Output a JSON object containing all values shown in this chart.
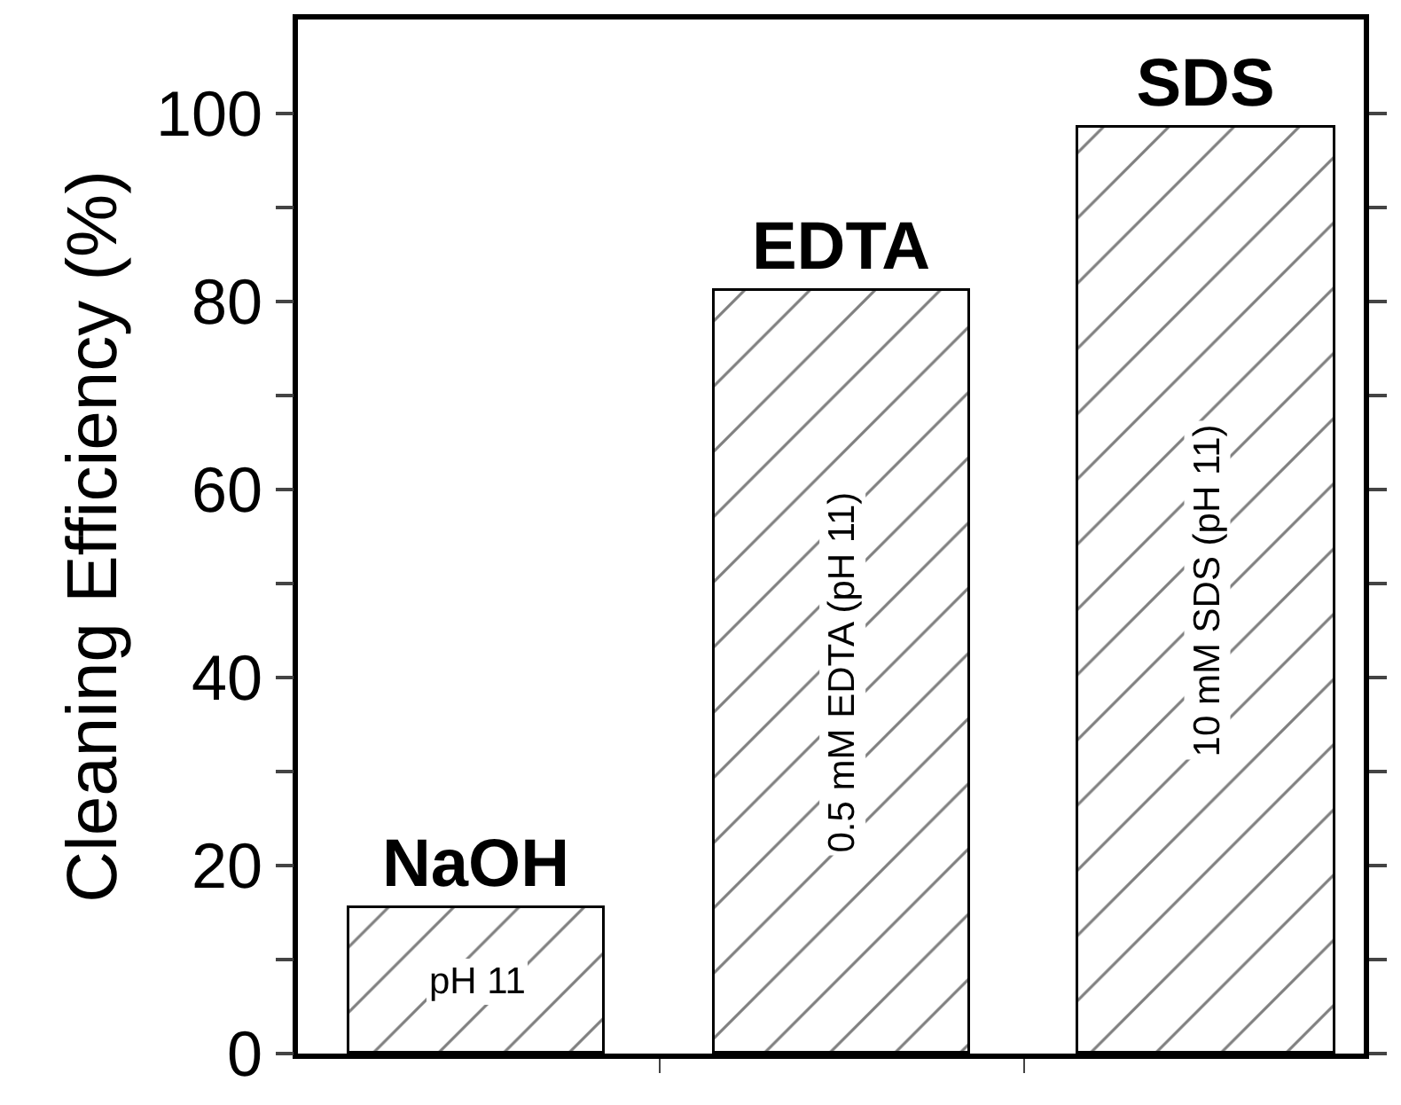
{
  "chart_data": {
    "type": "bar",
    "ylabel": "Cleaning Efficiency (%)",
    "categories": [
      null,
      null,
      null
    ],
    "series": [
      {
        "name": "NaOH",
        "color": "#000000",
        "values": [
          15.4,
          null,
          null
        ]
      },
      {
        "name": "EDTA",
        "color": "#000000",
        "values": [
          null,
          81.1,
          null
        ]
      },
      {
        "name": "SDS",
        "color": "#000000",
        "values": [
          null,
          null,
          98.4
        ]
      }
    ],
    "annotations": [
      "pH 11",
      "0.5 mM EDTA (pH 11)",
      "10 mM SDS (pH 11)"
    ],
    "ylim": [
      0,
      110
    ],
    "yticks": [
      0,
      {
        "value": 10,
        "label": null
      },
      20,
      {
        "value": 30,
        "label": null
      },
      40,
      {
        "value": 50,
        "label": null
      },
      60,
      {
        "value": 70,
        "label": null
      },
      80,
      {
        "value": 90,
        "label": null
      },
      100
    ],
    "tick_labels": "y",
    "legend": false
  }
}
